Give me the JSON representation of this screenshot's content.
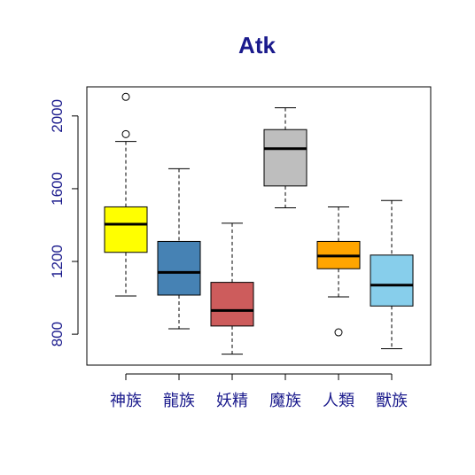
{
  "chart_data": {
    "type": "boxplot",
    "title": "Atk",
    "xlabel": "",
    "ylabel": "",
    "ylim": [
      630,
      2160
    ],
    "yticks": [
      800,
      1200,
      1600,
      2000
    ],
    "grid": false,
    "categories": [
      "神族",
      "龍族",
      "妖精",
      "魔族",
      "人類",
      "獸族"
    ],
    "boxes": [
      {
        "category": "神族",
        "min": 1010,
        "q1": 1250,
        "median": 1405,
        "q3": 1500,
        "max": 1860,
        "outliers": [
          2105,
          1900
        ],
        "color": "#ffff00"
      },
      {
        "category": "龍族",
        "min": 830,
        "q1": 1015,
        "median": 1140,
        "q3": 1310,
        "max": 1710,
        "outliers": [],
        "color": "#4682b4"
      },
      {
        "category": "妖精",
        "min": 690,
        "q1": 845,
        "median": 930,
        "q3": 1085,
        "max": 1410,
        "outliers": [],
        "color": "#cd5c5c"
      },
      {
        "category": "魔族",
        "min": 1495,
        "q1": 1615,
        "median": 1820,
        "q3": 1925,
        "max": 2045,
        "outliers": [],
        "color": "#bebebe"
      },
      {
        "category": "人類",
        "min": 1005,
        "q1": 1160,
        "median": 1230,
        "q3": 1310,
        "max": 1500,
        "outliers": [
          810
        ],
        "color": "#ffa500"
      },
      {
        "category": "獸族",
        "min": 720,
        "q1": 955,
        "median": 1070,
        "q3": 1235,
        "max": 1535,
        "outliers": [],
        "color": "#87ceeb"
      }
    ]
  }
}
